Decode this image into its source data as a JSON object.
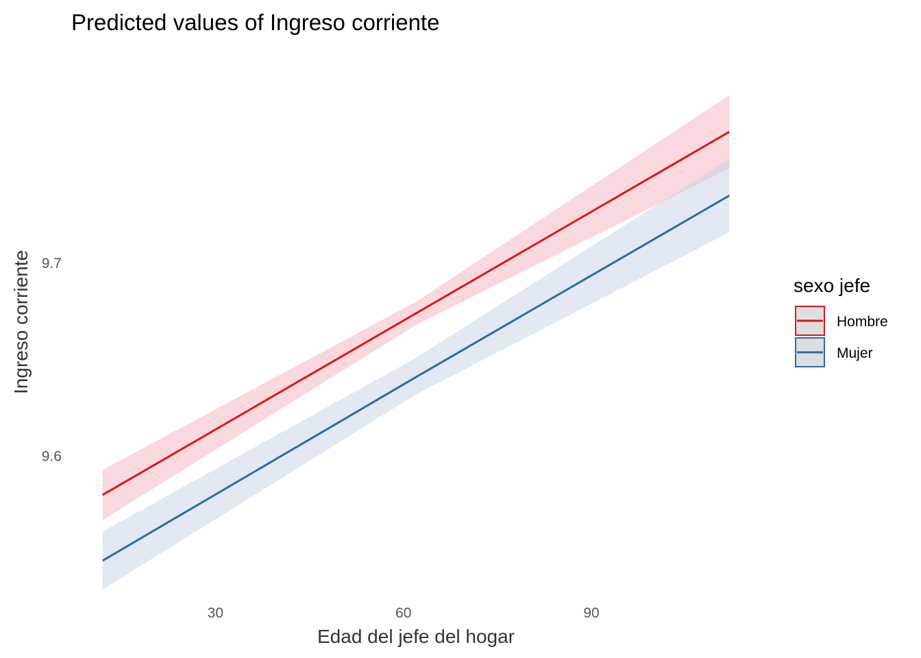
{
  "chart_data": {
    "type": "line",
    "title": "Predicted values of Ingreso corriente",
    "xlabel": "Edad del jefe del hogar",
    "ylabel": "Ingreso corriente",
    "xlim": [
      7,
      117
    ],
    "ylim": [
      9.5268,
      9.8132
    ],
    "x_ticks": [
      30,
      60,
      90
    ],
    "x_tick_labels": [
      "30",
      "60",
      "90"
    ],
    "y_ticks": [
      9.6,
      9.7
    ],
    "y_tick_labels": [
      "9.6",
      "9.7"
    ],
    "grid": false,
    "legend": {
      "title": "sexo jefe",
      "position": "right"
    },
    "series": [
      {
        "name": "Hombre",
        "color": "#d7191c",
        "fill": "#f4b3bb",
        "x": [
          12,
          62,
          112
        ],
        "y": [
          9.58,
          9.674,
          9.768
        ],
        "ymin": [
          9.567,
          9.668,
          9.749
        ],
        "ymax": [
          9.593,
          9.68,
          9.787
        ]
      },
      {
        "name": "Mujer",
        "color": "#2c6aa8",
        "fill": "#c5d3e8",
        "x": [
          12,
          62,
          112
        ],
        "y": [
          9.546,
          9.641,
          9.735
        ],
        "ymin": [
          9.531,
          9.632,
          9.716
        ],
        "ymax": [
          9.561,
          9.651,
          9.754
        ]
      }
    ]
  }
}
